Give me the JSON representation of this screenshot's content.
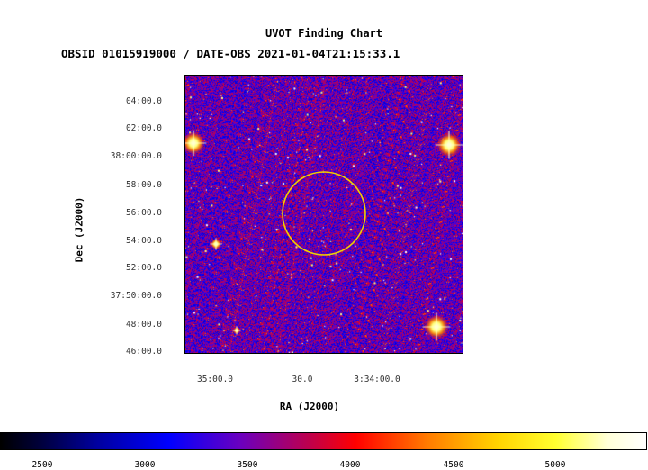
{
  "chart_data": {
    "type": "heatmap",
    "title": "UVOT Finding Chart",
    "subtitle": "OBSID 01015919000 / DATE-OBS 2021-01-04T21:15:33.1",
    "xlabel": "RA (J2000)",
    "ylabel": "Dec (J2000)",
    "x_ticks": [
      "35:00.0",
      "30.0",
      "3:34:00.0"
    ],
    "y_ticks": [
      "04:00.0",
      "02:00.0",
      "38:00:00.0",
      "58:00.0",
      "56:00.0",
      "54:00.0",
      "52:00.0",
      "37:50:00.0",
      "48:00.0",
      "46:00.0"
    ],
    "colorbar": {
      "ticks": [
        "2500",
        "3000",
        "3500",
        "4000",
        "4500",
        "5000"
      ],
      "range": [
        2280,
        5420
      ],
      "colormap": "blue-red-yellow-white"
    },
    "marker": {
      "shape": "circle",
      "color": "#f0d000"
    }
  }
}
